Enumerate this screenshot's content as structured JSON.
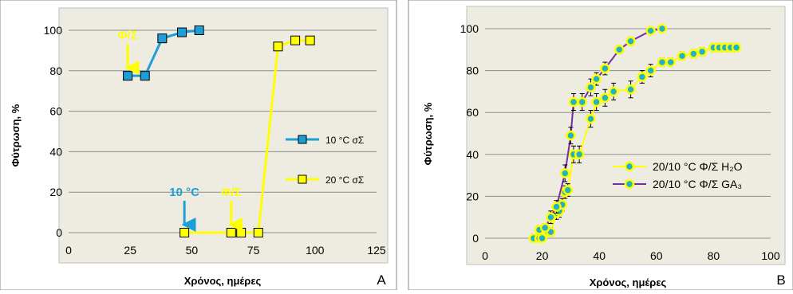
{
  "chart_data": [
    {
      "type": "line",
      "panel_letter": "A",
      "xlabel": "Χρόνος, ημέρες",
      "ylabel": "Φύτρωση, %",
      "xlim": [
        0,
        125
      ],
      "ylim": [
        0,
        100
      ],
      "x_ticks": [
        0,
        25,
        50,
        75,
        100,
        125
      ],
      "y_ticks": [
        0,
        20,
        40,
        60,
        80,
        100
      ],
      "grid": "horizontal",
      "legend_position": "right",
      "series": [
        {
          "name": "10 °C σΣ",
          "color": "#1b9fd6",
          "marker": "square",
          "x": [
            24,
            31,
            38,
            46,
            53
          ],
          "y": [
            77.5,
            77.5,
            96,
            99,
            100
          ]
        },
        {
          "name": "20 °C σΣ",
          "color": "#ffff00",
          "marker": "square",
          "x": [
            47,
            66,
            70,
            77,
            85,
            92,
            98
          ],
          "y": [
            0,
            0,
            0,
            0,
            92,
            95,
            95
          ]
        }
      ],
      "annotations": [
        {
          "text": "Φ/Σ",
          "x": 24,
          "y": 77.5,
          "color": "#ffff00"
        },
        {
          "text": "10 °C",
          "x": 47,
          "y": 0,
          "color": "#1b9fd6"
        },
        {
          "text": "Φ/Σ",
          "x": 66,
          "y": 0,
          "color": "#ffff00"
        }
      ]
    },
    {
      "type": "line",
      "panel_letter": "B",
      "xlabel": "Χρόνος, ημέρες",
      "ylabel": "Φύτρωση, %",
      "xlim": [
        0,
        100
      ],
      "ylim": [
        0,
        100
      ],
      "x_ticks": [
        0,
        20,
        40,
        60,
        80,
        100
      ],
      "y_ticks": [
        0,
        20,
        40,
        60,
        80,
        100
      ],
      "grid": "horizontal",
      "legend_position": "bottom-right",
      "series": [
        {
          "name": "20/10 °C Φ/Σ H₂O",
          "color": "#ffff00",
          "marker": "circle",
          "x": [
            17,
            19,
            20,
            22,
            23,
            25,
            26,
            27,
            28,
            29,
            31,
            33,
            37,
            39,
            42,
            45,
            51,
            55,
            58,
            62,
            65,
            69,
            73,
            76,
            80,
            82,
            84,
            86,
            88
          ],
          "y": [
            0,
            0,
            0,
            3,
            3,
            12,
            13,
            16,
            22,
            23,
            40,
            40,
            57,
            65,
            67,
            70,
            71,
            77,
            80,
            84,
            84,
            87,
            88,
            89,
            91,
            91,
            91,
            91,
            91
          ],
          "error": [
            0,
            0,
            0,
            2,
            2,
            3,
            3,
            3,
            3,
            3,
            4,
            4,
            4,
            4,
            4,
            4,
            4,
            3,
            3,
            2,
            2,
            2,
            2,
            2,
            2,
            2,
            2,
            2,
            2
          ]
        },
        {
          "name": "20/10 °C Φ/Σ GA₃",
          "color": "#7030a0",
          "marker": "circle",
          "x": [
            19,
            21,
            23,
            25,
            28,
            30,
            31,
            34,
            37,
            39,
            42,
            47,
            51,
            58,
            62
          ],
          "y": [
            4,
            5,
            10,
            15,
            31,
            49,
            65,
            65,
            72,
            76,
            81,
            90,
            94,
            99,
            100
          ],
          "error": [
            2,
            2,
            3,
            3,
            4,
            4,
            4,
            4,
            4,
            3,
            3,
            2,
            2,
            1,
            1
          ]
        }
      ]
    }
  ]
}
